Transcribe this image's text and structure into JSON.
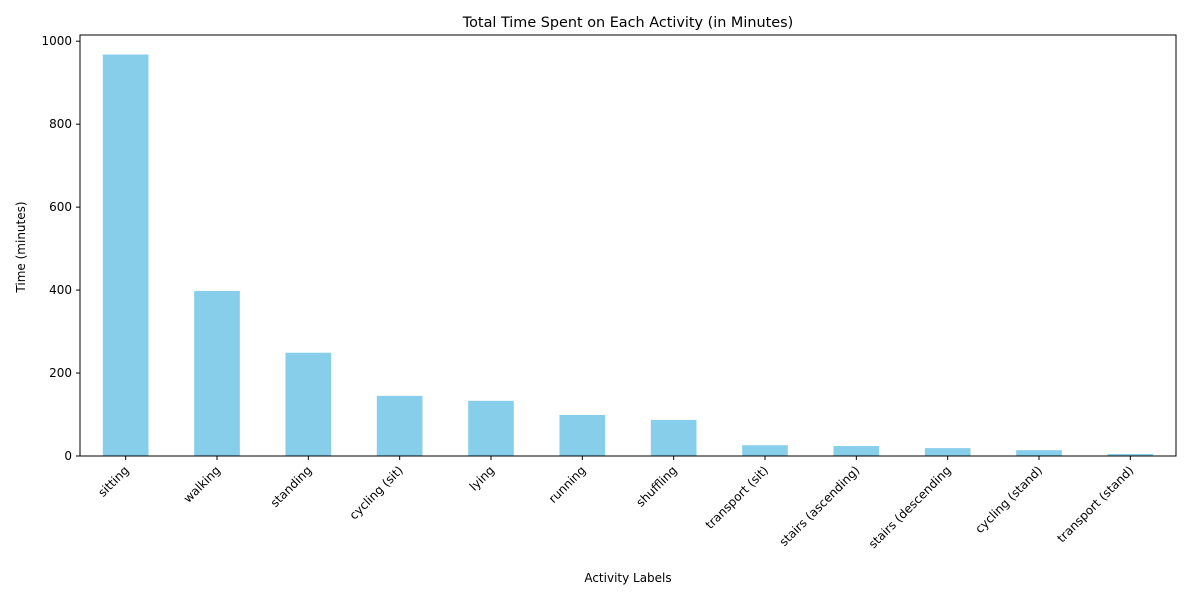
{
  "chart_data": {
    "type": "bar",
    "title": "Total Time Spent on Each Activity (in Minutes)",
    "xlabel": "Activity Labels",
    "ylabel": "Time (minutes)",
    "categories": [
      "sitting",
      "walking",
      "standing",
      "cycling (sit)",
      "lying",
      "running",
      "shuffling",
      "transport (sit)",
      "stairs (ascending)",
      "stairs (descending",
      "cycling (stand)",
      "transport (stand)"
    ],
    "values": [
      968,
      398,
      249,
      145,
      133,
      99,
      87,
      26,
      24,
      19,
      14,
      5
    ],
    "ylim": [
      0,
      1015
    ],
    "yticks": [
      0,
      200,
      400,
      600,
      800,
      1000
    ],
    "bar_color": "#87ceeb",
    "grid": false,
    "legend": "none"
  }
}
